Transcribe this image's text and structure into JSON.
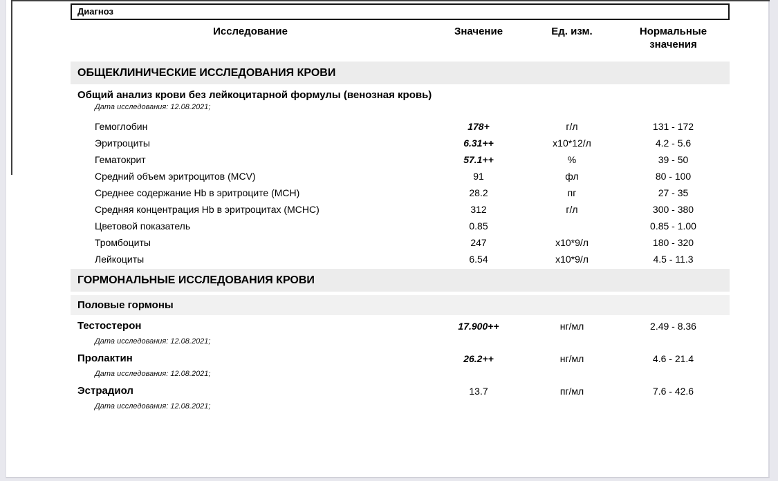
{
  "page": {
    "diagnosis_label": "Диагноз"
  },
  "table_header": {
    "study": "Исследование",
    "value": "Значение",
    "unit": "Ед. изм.",
    "normal": "Нормальные значения"
  },
  "section1": {
    "title": "ОБЩЕКЛИНИЧЕСКИЕ ИССЛЕДОВАНИЯ КРОВИ",
    "group_title": "Общий анализ крови без лейкоцитарной формулы (венозная кровь)",
    "date": "Дата исследования: 12.08.2021;",
    "rows": [
      {
        "name": "Гемоглобин",
        "value": "178+",
        "unit": "г/л",
        "normal": "131 - 172",
        "abnormal": true
      },
      {
        "name": "Эритроциты",
        "value": "6.31++",
        "unit": "х10*12/л",
        "normal": "4.2 - 5.6",
        "abnormal": true
      },
      {
        "name": "Гематокрит",
        "value": "57.1++",
        "unit": "%",
        "normal": "39 - 50",
        "abnormal": true
      },
      {
        "name": "Средний объем эритроцитов (MCV)",
        "value": "91",
        "unit": "фл",
        "normal": "80 - 100",
        "abnormal": false
      },
      {
        "name": "Среднее содержание Hb в эритроците (MCH)",
        "value": "28.2",
        "unit": "пг",
        "normal": "27 - 35",
        "abnormal": false
      },
      {
        "name": "Средняя концентрация Hb в эритроцитах (MCHC)",
        "value": "312",
        "unit": "г/л",
        "normal": "300 - 380",
        "abnormal": false
      },
      {
        "name": "Цветовой показатель",
        "value": "0.85",
        "unit": "",
        "normal": "0.85 - 1.00",
        "abnormal": false
      },
      {
        "name": "Тромбоциты",
        "value": "247",
        "unit": "х10*9/л",
        "normal": "180 - 320",
        "abnormal": false
      },
      {
        "name": "Лейкоциты",
        "value": "6.54",
        "unit": "х10*9/л",
        "normal": "4.5 - 11.3",
        "abnormal": false
      }
    ]
  },
  "section2": {
    "title": "ГОРМОНАЛЬНЫЕ ИССЛЕДОВАНИЯ КРОВИ",
    "subtitle": "Половые гормоны",
    "tests": [
      {
        "name": "Тестостерон",
        "value": "17.900++",
        "unit": "нг/мл",
        "normal": "2.49 - 8.36",
        "date": "Дата исследования: 12.08.2021;",
        "abnormal": true
      },
      {
        "name": "Пролактин",
        "value": "26.2++",
        "unit": "нг/мл",
        "normal": "4.6 - 21.4",
        "date": "Дата исследования: 12.08.2021;",
        "abnormal": true
      },
      {
        "name": "Эстрадиол",
        "value": "13.7",
        "unit": "пг/мл",
        "normal": "7.6 - 42.6",
        "date": "Дата исследования: 12.08.2021;",
        "abnormal": false
      }
    ]
  },
  "colors": {
    "section_bar_bg": "#ececec",
    "subsection_bar_bg": "#f1f1f1",
    "frame_bg": "#e8e8ee",
    "rule": "#3f3f3f"
  }
}
